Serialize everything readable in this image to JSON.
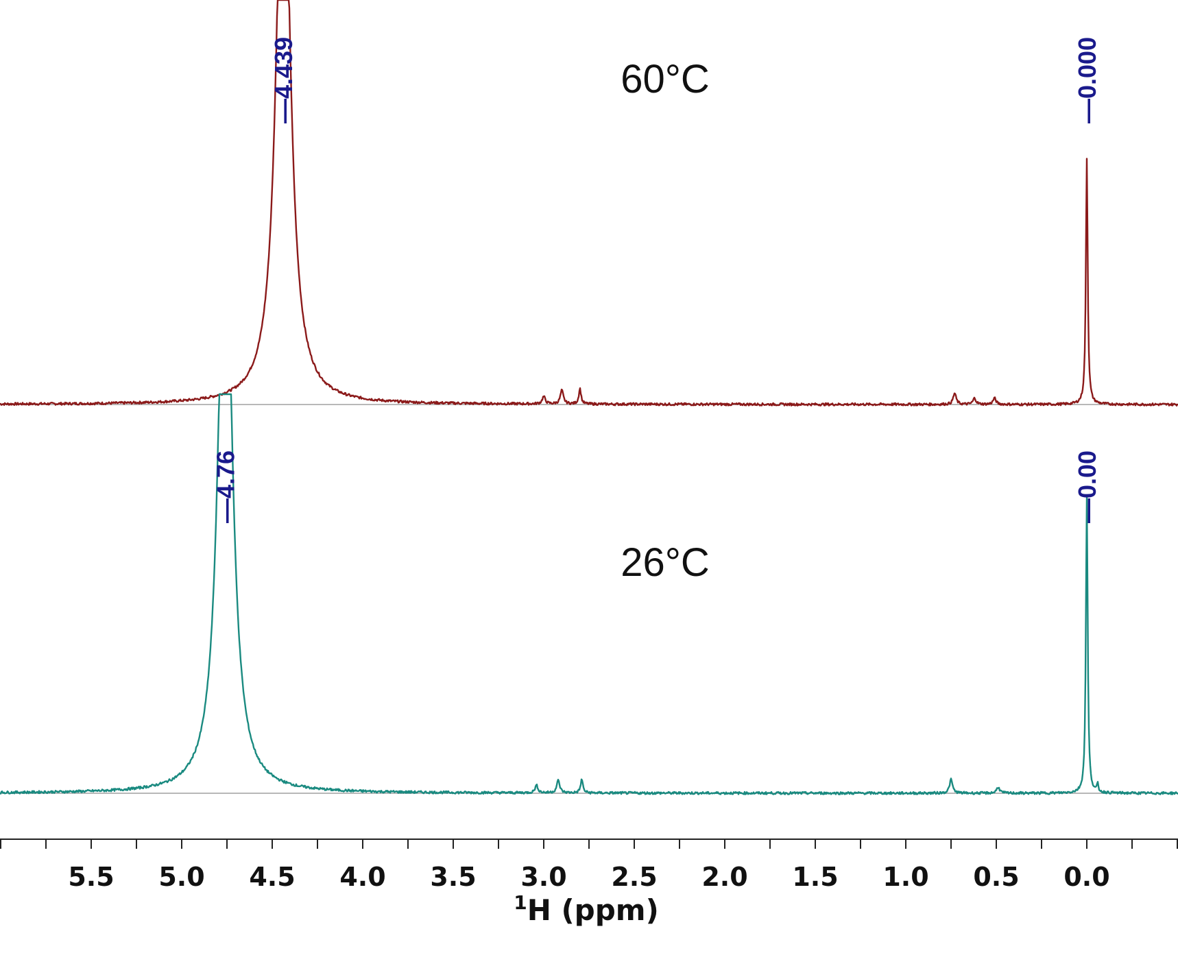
{
  "chart_data": {
    "type": "line",
    "xlabel_sup": "1",
    "xlabel": "H (ppm)",
    "xlim": [
      6.0,
      -0.5
    ],
    "x_reversed": true,
    "x_major_ticks": [
      5.5,
      5.0,
      4.5,
      4.0,
      3.5,
      3.0,
      2.5,
      2.0,
      1.5,
      1.0,
      0.5,
      0.0
    ],
    "x_tick_labels": [
      "5.5",
      "5.0",
      "4.5",
      "4.0",
      "3.5",
      "3.0",
      "2.5",
      "2.0",
      "1.5",
      "1.0",
      "0.5",
      "0.0"
    ],
    "x_minor_step": 0.25,
    "grid": false,
    "series": [
      {
        "name": "60°C",
        "color": "#8b1a1a",
        "peaks": [
          {
            "ppm": 4.439,
            "height": 1.0,
            "width": 0.09,
            "label": "4.439"
          },
          {
            "ppm": 0.0,
            "height": 0.4,
            "width": 0.012,
            "label": "0.000"
          },
          {
            "ppm": 3.0,
            "height": 0.012,
            "width": 0.02
          },
          {
            "ppm": 2.9,
            "height": 0.022,
            "width": 0.02
          },
          {
            "ppm": 2.8,
            "height": 0.025,
            "width": 0.015
          },
          {
            "ppm": 0.73,
            "height": 0.018,
            "width": 0.02
          },
          {
            "ppm": 0.62,
            "height": 0.01,
            "width": 0.02
          },
          {
            "ppm": 0.51,
            "height": 0.01,
            "width": 0.02
          }
        ]
      },
      {
        "name": "26°C",
        "color": "#1a8a80",
        "peaks": [
          {
            "ppm": 4.76,
            "height": 1.0,
            "width": 0.09,
            "label": "4.76"
          },
          {
            "ppm": 0.0,
            "height": 0.48,
            "width": 0.012,
            "label": "0.00"
          },
          {
            "ppm": 3.04,
            "height": 0.012,
            "width": 0.02
          },
          {
            "ppm": 2.92,
            "height": 0.02,
            "width": 0.02
          },
          {
            "ppm": 2.79,
            "height": 0.022,
            "width": 0.015
          },
          {
            "ppm": 0.75,
            "height": 0.022,
            "width": 0.02
          },
          {
            "ppm": 0.49,
            "height": 0.01,
            "width": 0.02
          },
          {
            "ppm": -0.06,
            "height": 0.012,
            "width": 0.01
          }
        ]
      }
    ]
  }
}
